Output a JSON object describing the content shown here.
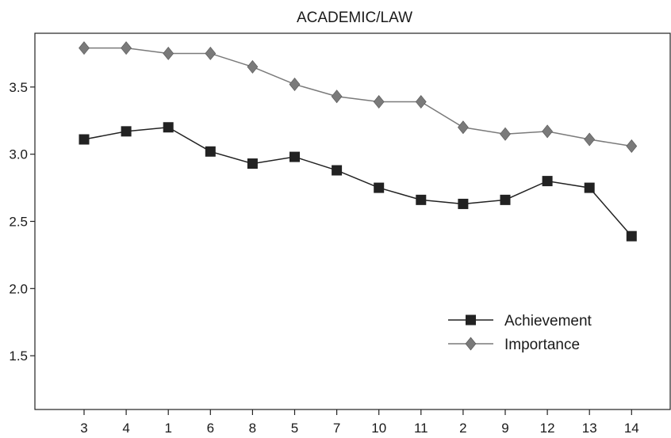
{
  "chart_data": {
    "type": "line",
    "title": "ACADEMIC/LAW",
    "xlabel": "",
    "ylabel": "",
    "categories": [
      "3",
      "4",
      "1",
      "6",
      "8",
      "5",
      "7",
      "10",
      "11",
      "2",
      "9",
      "12",
      "13",
      "14"
    ],
    "ylim": [
      1.1,
      3.9
    ],
    "yticks": [
      {
        "value": 1.5,
        "label": "1.5"
      },
      {
        "value": 2.0,
        "label": "2.0"
      },
      {
        "value": 2.5,
        "label": "2.5"
      },
      {
        "value": 3.0,
        "label": "3.0"
      },
      {
        "value": 3.5,
        "label": "3.5"
      }
    ],
    "grid": false,
    "legend_position": "lower-right",
    "series": [
      {
        "name": "Achievement",
        "marker": "square",
        "color": "#222222",
        "values": [
          3.11,
          3.17,
          3.2,
          3.02,
          2.93,
          2.98,
          2.88,
          2.75,
          2.66,
          2.63,
          2.66,
          2.8,
          2.75,
          2.39
        ]
      },
      {
        "name": "Importance",
        "marker": "diamond",
        "color": "#7a7a7a",
        "values": [
          3.79,
          3.79,
          3.75,
          3.75,
          3.65,
          3.52,
          3.43,
          3.39,
          3.39,
          3.2,
          3.15,
          3.17,
          3.11,
          3.06
        ]
      }
    ]
  }
}
